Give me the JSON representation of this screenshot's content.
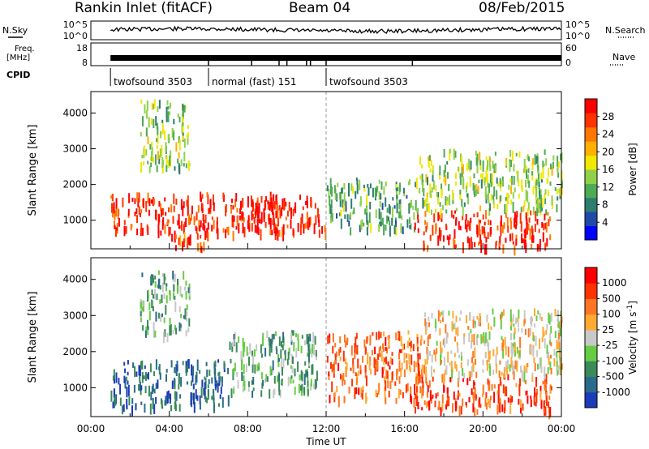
{
  "header": {
    "station": "Rankin Inlet (fitACF)",
    "beam": "Beam 04",
    "date": "08/Feb/2015"
  },
  "side_labels": {
    "nsky": "N.Sky",
    "nsearch": "N.Search",
    "freq": "Freq.",
    "freq_unit": "[MHz]",
    "nave": "Nave",
    "cpid": "CPID"
  },
  "noise_panel": {
    "left_ticks": [
      "10^5",
      "10^0"
    ],
    "right_ticks": [
      "10^5",
      "10^0"
    ]
  },
  "freq_panel": {
    "left_ticks": [
      "18",
      "8"
    ],
    "right_ticks": [
      "60",
      "0"
    ]
  },
  "cpid": {
    "segments": [
      {
        "label": "twofsound 3503",
        "start_hour": 1.0,
        "end_hour": 6.0
      },
      {
        "label": "normal (fast) 151",
        "start_hour": 6.0,
        "end_hour": 12.0
      },
      {
        "label": "twofsound 3503",
        "start_hour": 12.0,
        "end_hour": 24.0
      }
    ]
  },
  "chart_data": [
    {
      "type": "heatmap",
      "title": "Power",
      "xlabel": "",
      "ylabel": "Slant Range [km]",
      "xlim": [
        0,
        24
      ],
      "ylim": [
        200,
        4600
      ],
      "yticks": [
        "1000",
        "2000",
        "3000",
        "4000"
      ],
      "colorbar_label": "Power [dB]",
      "colorbar_ticks": [
        "28",
        "24",
        "20",
        "16",
        "12",
        "8",
        "4"
      ],
      "colorbar_colors": [
        "#0000ff",
        "#1f4aa8",
        "#2e7d6e",
        "#4daa55",
        "#8fd14a",
        "#f0e800",
        "#ffb000",
        "#ff7700",
        "#ff3300",
        "#ff0000"
      ],
      "regions": [
        {
          "x": [
            1.0,
            12.0
          ],
          "y": [
            700,
            1800
          ],
          "level": 0.9
        },
        {
          "x": [
            7.5,
            9.5
          ],
          "y": [
            800,
            1600
          ],
          "level": 0.95
        },
        {
          "x": [
            4.0,
            6.0
          ],
          "y": [
            250,
            700
          ],
          "level": 0.85
        },
        {
          "x": [
            12.0,
            16.5
          ],
          "y": [
            800,
            2200
          ],
          "level": 0.35
        },
        {
          "x": [
            16.5,
            23.5
          ],
          "y": [
            300,
            1300
          ],
          "level": 0.9
        },
        {
          "x": [
            16.5,
            24.0
          ],
          "y": [
            1300,
            3000
          ],
          "level": 0.45
        },
        {
          "x": [
            2.5,
            5.0
          ],
          "y": [
            2500,
            4400
          ],
          "level": 0.45
        }
      ]
    },
    {
      "type": "heatmap",
      "title": "Velocity",
      "xlabel": "Time UT",
      "ylabel": "Slant Range [km]",
      "xlim": [
        0,
        24
      ],
      "ylim": [
        200,
        4600
      ],
      "xticks": [
        "00:00",
        "04:00",
        "08:00",
        "12:00",
        "16:00",
        "20:00",
        "00:00"
      ],
      "yticks": [
        "1000",
        "2000",
        "3000",
        "4000"
      ],
      "colorbar_label": "Velocity [m s^-1]",
      "colorbar_ticks": [
        "1000",
        "500",
        "100",
        "25",
        "-25",
        "-100",
        "-500",
        "-1000"
      ],
      "colorbar_colors": [
        "#1a3cb8",
        "#2a6a8a",
        "#3a8a5a",
        "#66cc44",
        "#c8c8c8",
        "#ffaa33",
        "#ff7722",
        "#ff3300",
        "#ff0000"
      ],
      "regions": [
        {
          "x": [
            1.0,
            7.0
          ],
          "y": [
            500,
            1800
          ],
          "level": 0.15
        },
        {
          "x": [
            7.0,
            11.5
          ],
          "y": [
            900,
            2600
          ],
          "level": 0.35
        },
        {
          "x": [
            12.0,
            17.0
          ],
          "y": [
            700,
            2600
          ],
          "level": 0.75
        },
        {
          "x": [
            16.5,
            23.5
          ],
          "y": [
            400,
            1400
          ],
          "level": 0.8
        },
        {
          "x": [
            17.0,
            24.0
          ],
          "y": [
            1400,
            3200
          ],
          "level": 0.55
        },
        {
          "x": [
            2.5,
            5.0
          ],
          "y": [
            2500,
            4300
          ],
          "level": 0.35
        }
      ]
    }
  ]
}
